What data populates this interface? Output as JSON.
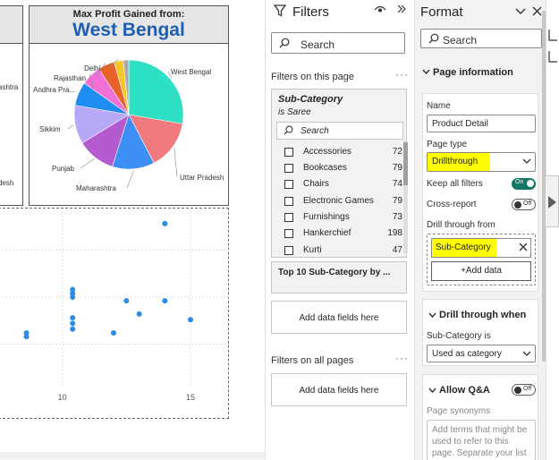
{
  "canvas": {
    "left_card_labels": [
      "ashtra",
      "desh"
    ],
    "pie_card": {
      "subtitle": "Max Profit Gained from:",
      "value": "West Bengal"
    }
  },
  "chart_data": {
    "type": "pie",
    "slices": [
      {
        "label": "West Bengal",
        "value": 25.5,
        "color": "#2ee0c3"
      },
      {
        "label": "Uttar Pradesh",
        "value": 13.5,
        "color": "#f07a7c"
      },
      {
        "label": "Maharashtra",
        "value": 11.5,
        "color": "#3d8ef5"
      },
      {
        "label": "Punjab",
        "value": 10.5,
        "color": "#b45bd0"
      },
      {
        "label": "Sikkim",
        "value": 10.5,
        "color": "#b8a8f8"
      },
      {
        "label": "",
        "value": 6.5,
        "color": "#1e8cf0"
      },
      {
        "label": "Andhra Pra...",
        "value": 5.5,
        "color": "#f070d8"
      },
      {
        "label": "Rajasthan",
        "value": 4.5,
        "color": "#e8622a"
      },
      {
        "label": "Delhi",
        "value": 2.5,
        "color": "#f5c52a"
      },
      {
        "label": "",
        "value": 1.5,
        "color": "#aaaaaa"
      }
    ]
  },
  "scatter": {
    "type": "scatter",
    "xticks": [
      "10",
      "15"
    ],
    "points": [
      [
        14,
        9.7
      ],
      [
        10.4,
        6.2
      ],
      [
        10.4,
        6.0
      ],
      [
        10.4,
        5.8
      ],
      [
        12.5,
        5.6
      ],
      [
        14,
        5.6
      ],
      [
        13,
        4.9
      ],
      [
        10.4,
        4.7
      ],
      [
        10.4,
        4.4
      ],
      [
        10.4,
        4.1
      ],
      [
        15,
        4.6
      ],
      [
        8.6,
        3.9
      ],
      [
        8.6,
        3.7
      ],
      [
        12,
        3.9
      ]
    ],
    "xlim": [
      7.5,
      16.5
    ],
    "ylim": [
      1.0,
      10.5
    ],
    "color": "#2b8ce8"
  },
  "filters": {
    "title": "Filters",
    "search": "Search",
    "on_this_page": "Filters on this page",
    "card": {
      "title": "Sub-Category",
      "condition": "is Saree",
      "search": "Search",
      "items": [
        {
          "name": "Accessories",
          "count": "72"
        },
        {
          "name": "Bookcases",
          "count": "79"
        },
        {
          "name": "Chairs",
          "count": "74"
        },
        {
          "name": "Electronic Games",
          "count": "79"
        },
        {
          "name": "Furnishings",
          "count": "73"
        },
        {
          "name": "Hankerchief",
          "count": "198"
        },
        {
          "name": "Kurti",
          "count": "47"
        }
      ]
    },
    "top10": "Top 10 Sub-Category by ...",
    "add_fields": "Add data fields here",
    "on_all_pages": "Filters on all pages",
    "add_fields_all": "Add data fields here"
  },
  "format": {
    "title": "Format",
    "search": "Search",
    "page_info": "Page information",
    "name_label": "Name",
    "name_value": "Product Detail",
    "page_type_label": "Page type",
    "page_type_value": "Drillthrough",
    "keep_filters_label": "Keep all filters",
    "keep_filters_state": "On",
    "cross_report_label": "Cross-report",
    "cross_report_state": "Off",
    "drill_from_label": "Drill through from",
    "drill_from_value": "Sub-Category",
    "add_data": "+Add data",
    "drill_when": "Drill through when",
    "subcat_is_label": "Sub-Category is",
    "subcat_is_value": "Used as category",
    "allow_qa": "Allow Q&A",
    "allow_qa_state": "Off",
    "synonyms_label": "Page synonyms",
    "synonyms_placeholder": "Add terms that might be used to refer to this page. Separate your list"
  }
}
